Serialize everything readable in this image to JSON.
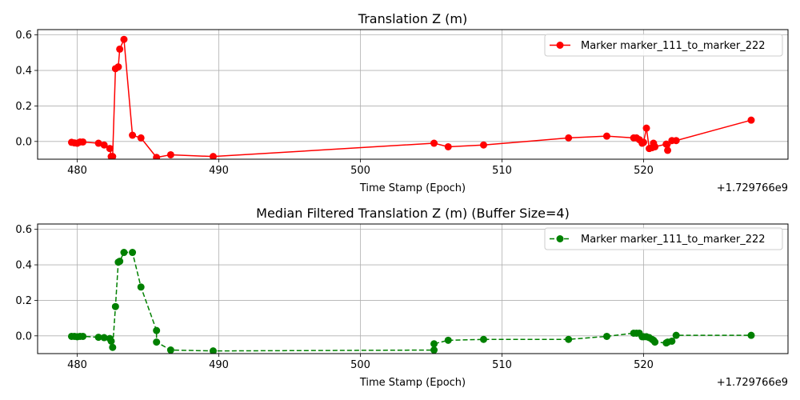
{
  "chart_data": [
    {
      "type": "line",
      "title": "Translation Z (m)",
      "xlabel": "Time Stamp (Epoch)",
      "ylabel": "",
      "offset_label": "+1.729766e9",
      "xlim": [
        477.2,
        530.2
      ],
      "ylim": [
        -0.1,
        0.63
      ],
      "xticks": [
        480,
        490,
        500,
        510,
        520
      ],
      "yticks": [
        0.0,
        0.2,
        0.4,
        0.6
      ],
      "ytick_labels": [
        "0.0",
        "0.2",
        "0.4",
        "0.6"
      ],
      "grid": true,
      "legend_placement": "top-right",
      "series": [
        {
          "name": "Marker marker_111_to_marker_222",
          "color": "#ff0000",
          "linestyle": "solid",
          "marker": "circle",
          "x": [
            479.6,
            479.8,
            480.0,
            480.2,
            480.4,
            481.5,
            481.9,
            482.3,
            482.4,
            482.5,
            482.7,
            482.9,
            483.0,
            483.3,
            483.9,
            484.5,
            485.6,
            486.6,
            489.6,
            505.2,
            506.2,
            508.7,
            514.7,
            517.4,
            519.3,
            519.5,
            519.7,
            519.9,
            520.0,
            520.2,
            520.4,
            520.6,
            520.7,
            520.8,
            521.6,
            521.7,
            522.0,
            522.3,
            527.6
          ],
          "y": [
            -0.005,
            -0.008,
            -0.01,
            -0.003,
            -0.003,
            -0.01,
            -0.02,
            -0.04,
            -0.085,
            -0.085,
            0.41,
            0.42,
            0.52,
            0.575,
            0.035,
            0.02,
            -0.09,
            -0.075,
            -0.085,
            -0.01,
            -0.03,
            -0.02,
            0.02,
            0.03,
            0.02,
            0.02,
            0.01,
            -0.01,
            -0.005,
            0.075,
            -0.04,
            -0.035,
            -0.01,
            -0.03,
            -0.015,
            -0.05,
            0.005,
            0.005,
            0.12
          ]
        }
      ]
    },
    {
      "type": "line",
      "title": "Median Filtered Translation Z (m) (Buffer Size=4)",
      "xlabel": "Time Stamp (Epoch)",
      "ylabel": "",
      "offset_label": "+1.729766e9",
      "xlim": [
        477.2,
        530.2
      ],
      "ylim": [
        -0.1,
        0.63
      ],
      "xticks": [
        480,
        490,
        500,
        510,
        520
      ],
      "yticks": [
        0.0,
        0.2,
        0.4,
        0.6
      ],
      "ytick_labels": [
        "0.0",
        "0.2",
        "0.4",
        "0.6"
      ],
      "grid": true,
      "legend_placement": "top-right",
      "series": [
        {
          "name": "Marker marker_111_to_marker_222",
          "color": "#008000",
          "linestyle": "dashed",
          "marker": "circle",
          "x": [
            479.6,
            479.8,
            480.0,
            480.2,
            480.4,
            481.5,
            481.9,
            482.3,
            482.4,
            482.5,
            482.7,
            482.9,
            483.0,
            483.3,
            483.9,
            484.5,
            485.6,
            485.6,
            486.6,
            489.6,
            505.2,
            505.2,
            506.2,
            508.7,
            514.7,
            517.4,
            519.3,
            519.5,
            519.7,
            519.9,
            520.0,
            520.2,
            520.4,
            520.6,
            520.7,
            520.8,
            521.6,
            521.7,
            522.0,
            522.3,
            527.6
          ],
          "y": [
            -0.003,
            -0.003,
            -0.005,
            -0.003,
            -0.003,
            -0.008,
            -0.01,
            -0.015,
            -0.03,
            -0.065,
            0.165,
            0.415,
            0.42,
            0.47,
            0.47,
            0.275,
            0.03,
            -0.035,
            -0.08,
            -0.085,
            -0.08,
            -0.045,
            -0.025,
            -0.02,
            -0.02,
            -0.003,
            0.015,
            0.015,
            0.015,
            -0.005,
            -0.005,
            -0.005,
            -0.01,
            -0.02,
            -0.025,
            -0.035,
            -0.04,
            -0.035,
            -0.03,
            0.003,
            0.003
          ]
        }
      ]
    }
  ]
}
